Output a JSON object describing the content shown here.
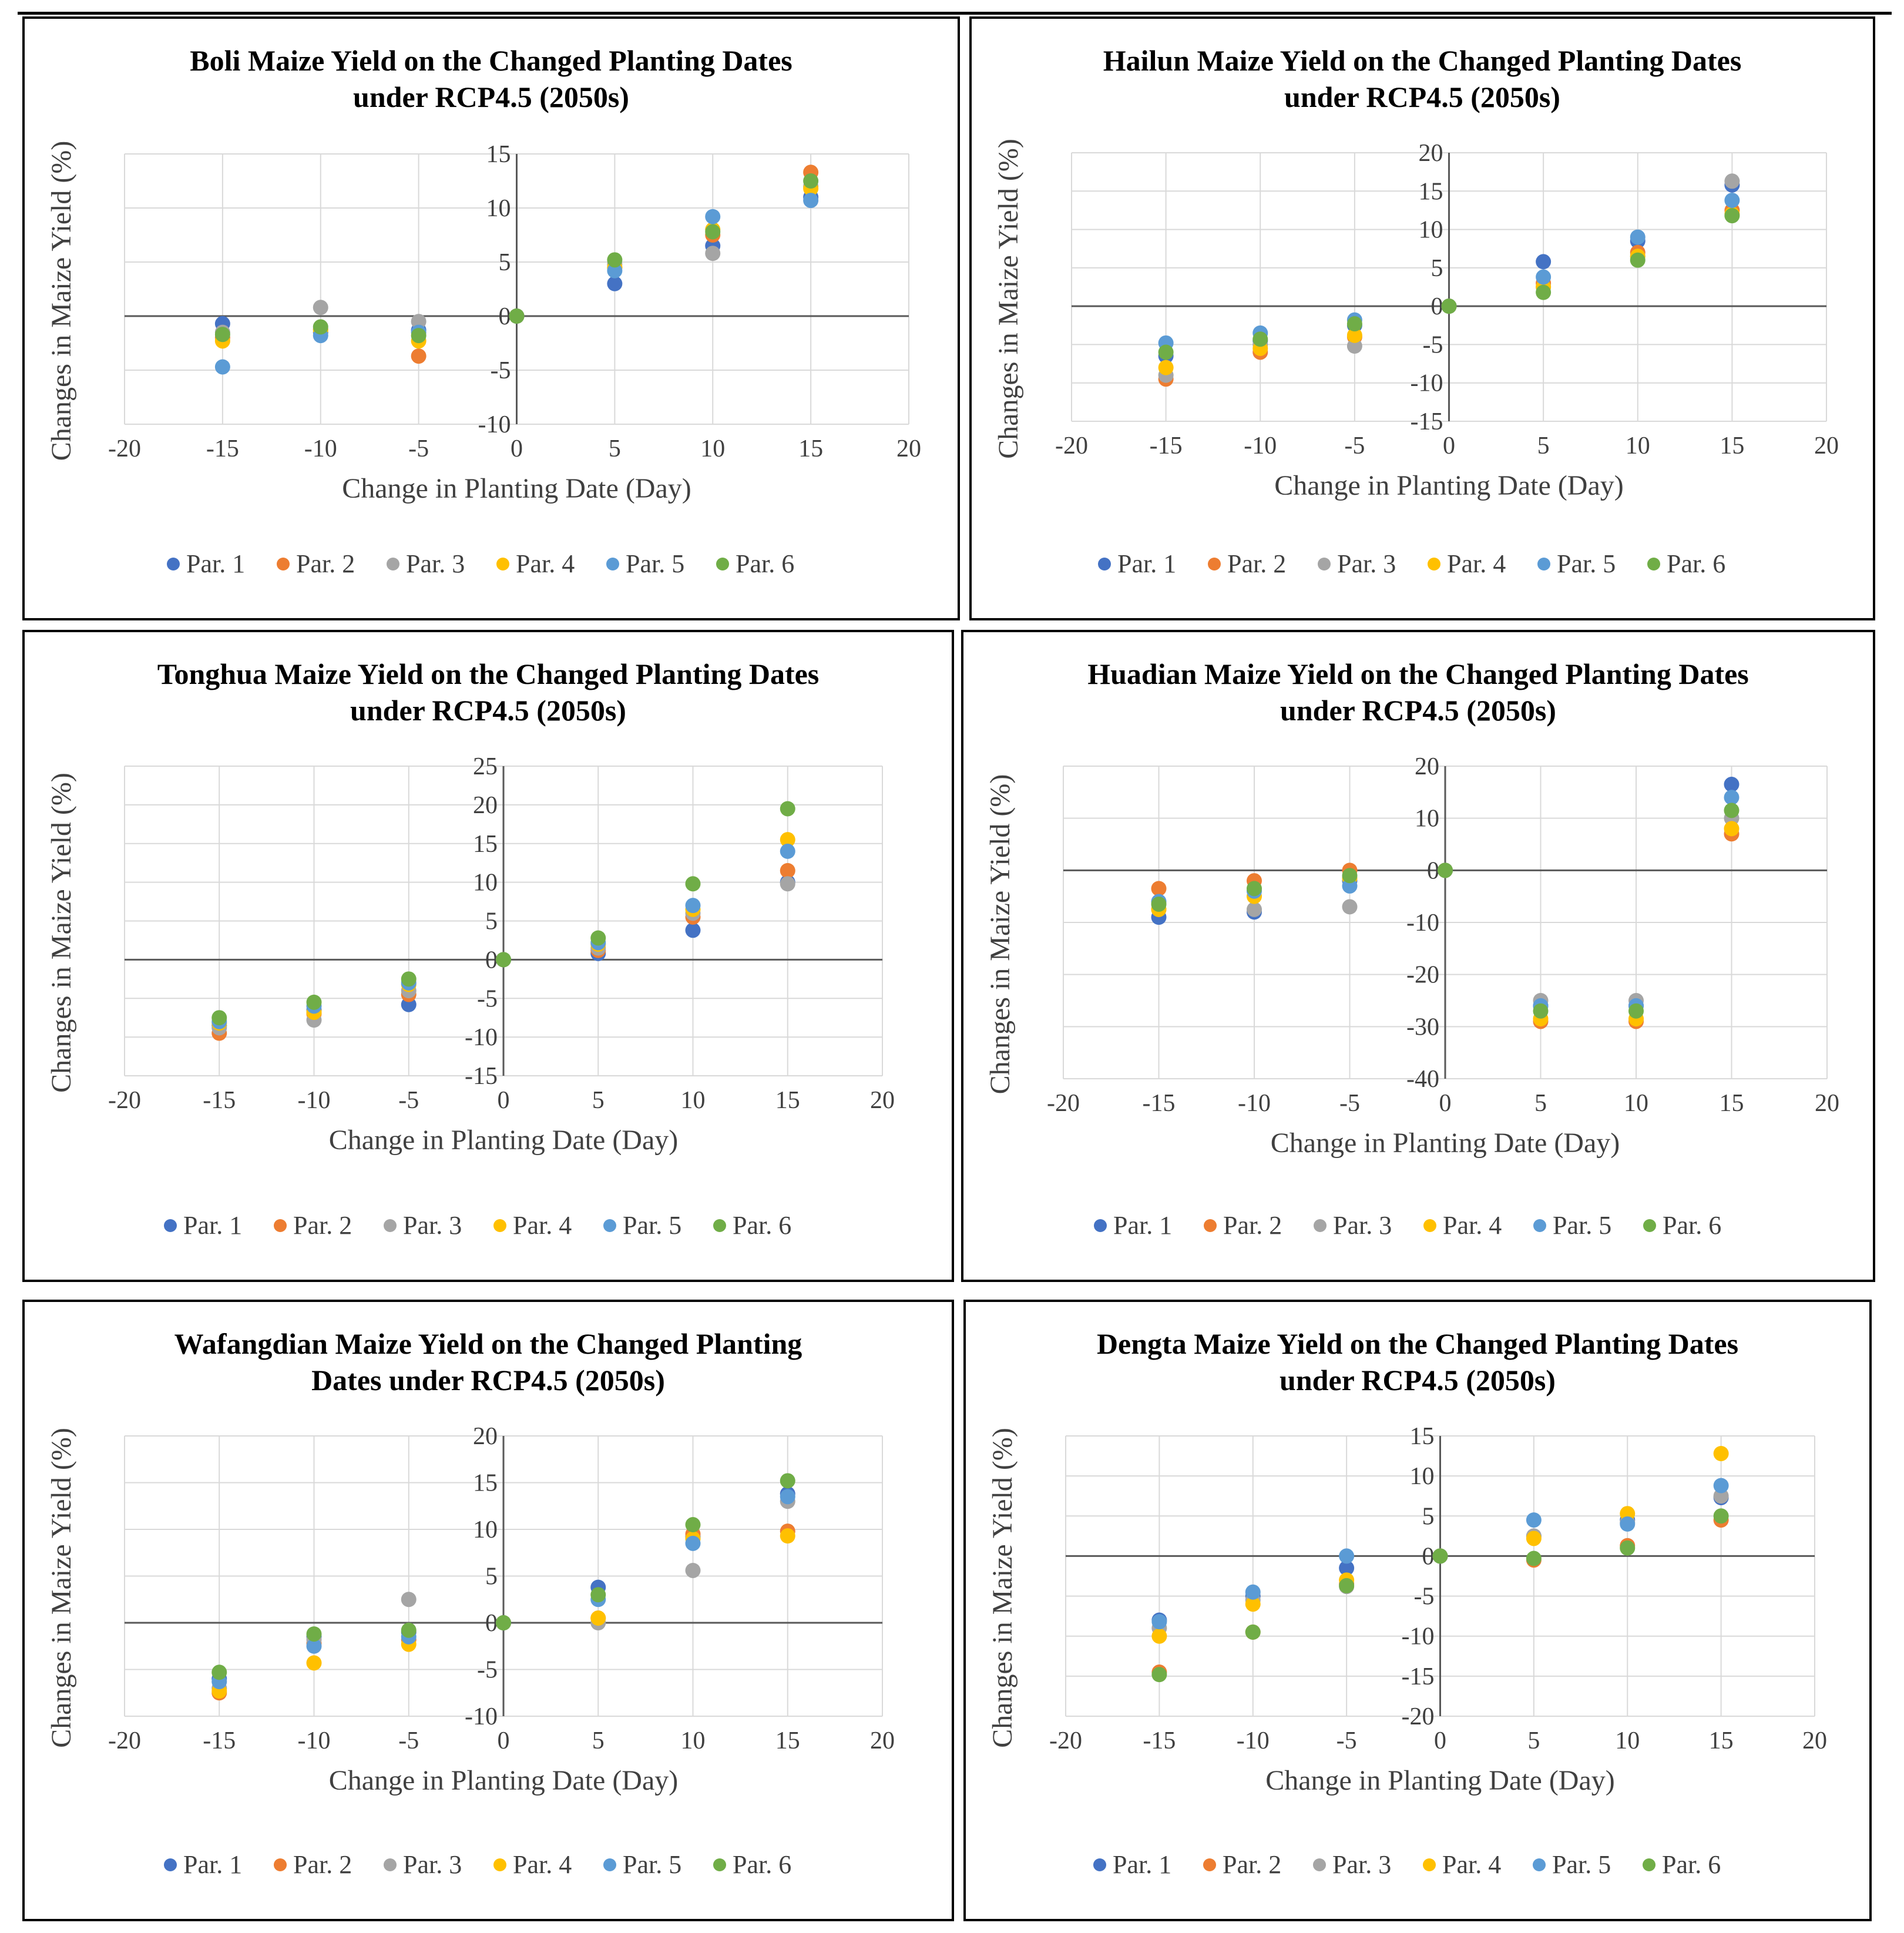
{
  "colors": {
    "par1": "#4472C4",
    "par2": "#ED7D31",
    "par3": "#A5A5A5",
    "par4": "#FFC000",
    "par5": "#5B9BD5",
    "par6": "#70AD47",
    "grid": "#d9d9d9",
    "axis": "#595959"
  },
  "chart_data": [
    {
      "type": "scatter",
      "title_lines": [
        "Boli Maize Yield on the Changed Planting Dates",
        "under RCP4.5 (2050s)"
      ],
      "xlabel": "Change in Planting Date (Day)",
      "ylabel": "Changes in Maize Yield (%)",
      "xlim": [
        -20,
        20
      ],
      "xticks": [
        -20,
        -15,
        -10,
        -5,
        0,
        5,
        10,
        15,
        20
      ],
      "ylim": [
        -10,
        15
      ],
      "yticks": [
        -10,
        -5,
        0,
        5,
        10,
        15
      ],
      "legend_position": "bottom",
      "x": [
        -15,
        -10,
        -5,
        0,
        5,
        10,
        15
      ],
      "series": [
        {
          "name": "Par. 1",
          "values": [
            -0.7,
            -1.5,
            -1.3,
            0,
            3,
            6.5,
            11
          ]
        },
        {
          "name": "Par. 2",
          "values": [
            -2,
            -1.2,
            -3.7,
            0,
            4.5,
            7.5,
            13.3
          ]
        },
        {
          "name": "Par. 3",
          "values": [
            -1.5,
            0.8,
            -0.5,
            0,
            4.8,
            5.8,
            12
          ]
        },
        {
          "name": "Par. 4",
          "values": [
            -2.3,
            -1.3,
            -2.3,
            0,
            4.5,
            8,
            11.8
          ]
        },
        {
          "name": "Par. 5",
          "values": [
            -4.7,
            -1.8,
            -1.5,
            0,
            4.2,
            9.2,
            10.7
          ]
        },
        {
          "name": "Par. 6",
          "values": [
            -1.7,
            -1,
            -1.8,
            0,
            5.2,
            7.8,
            12.5
          ]
        }
      ]
    },
    {
      "type": "scatter",
      "title_lines": [
        "Hailun Maize Yield on the Changed Planting Dates",
        "under RCP4.5 (2050s)"
      ],
      "xlabel": "Change in Planting Date (Day)",
      "ylabel": "Changes in Maize Yield (%)",
      "xlim": [
        -20,
        20
      ],
      "xticks": [
        -20,
        -15,
        -10,
        -5,
        0,
        5,
        10,
        15,
        20
      ],
      "ylim": [
        -15,
        20
      ],
      "yticks": [
        -15,
        -10,
        -5,
        0,
        5,
        10,
        15,
        20
      ],
      "legend_position": "bottom",
      "x": [
        -15,
        -10,
        -5,
        0,
        5,
        10,
        15
      ],
      "series": [
        {
          "name": "Par. 1",
          "values": [
            -6.5,
            -4.5,
            -2.5,
            0,
            5.8,
            8.5,
            15.8
          ]
        },
        {
          "name": "Par. 2",
          "values": [
            -9.5,
            -6,
            -4,
            0,
            3,
            7,
            12.5
          ]
        },
        {
          "name": "Par. 3",
          "values": [
            -9,
            -5,
            -5.2,
            0,
            2.5,
            6.5,
            16.3
          ]
        },
        {
          "name": "Par. 4",
          "values": [
            -8,
            -5.5,
            -3.8,
            0,
            2.5,
            6.5,
            12
          ]
        },
        {
          "name": "Par. 5",
          "values": [
            -4.8,
            -3.5,
            -1.8,
            0,
            3.8,
            9,
            13.8
          ]
        },
        {
          "name": "Par. 6",
          "values": [
            -6,
            -4.3,
            -2.3,
            0,
            1.8,
            6,
            11.8
          ]
        }
      ]
    },
    {
      "type": "scatter",
      "title_lines": [
        "Tonghua Maize Yield on the Changed Planting Dates",
        "under RCP4.5 (2050s)"
      ],
      "xlabel": "Change in Planting Date (Day)",
      "ylabel": "Changes in Maize Yield (%)",
      "xlim": [
        -20,
        20
      ],
      "xticks": [
        -20,
        -15,
        -10,
        -5,
        0,
        5,
        10,
        15,
        20
      ],
      "ylim": [
        -15,
        25
      ],
      "yticks": [
        -15,
        -10,
        -5,
        0,
        5,
        10,
        15,
        20,
        25
      ],
      "legend_position": "bottom",
      "x": [
        -15,
        -10,
        -5,
        0,
        5,
        10,
        15
      ],
      "series": [
        {
          "name": "Par. 1",
          "values": [
            -8.5,
            -6.5,
            -5.8,
            0,
            0.8,
            3.8,
            10
          ]
        },
        {
          "name": "Par. 2",
          "values": [
            -9.5,
            -7,
            -4.5,
            0,
            1.2,
            5.5,
            11.5
          ]
        },
        {
          "name": "Par. 3",
          "values": [
            -8.8,
            -7.8,
            -4,
            0,
            1.5,
            6,
            9.8
          ]
        },
        {
          "name": "Par. 4",
          "values": [
            -8.2,
            -6.8,
            -3.2,
            0,
            2,
            6.5,
            15.5
          ]
        },
        {
          "name": "Par. 5",
          "values": [
            -8,
            -6,
            -3,
            0,
            2.2,
            7,
            14
          ]
        },
        {
          "name": "Par. 6",
          "values": [
            -7.5,
            -5.5,
            -2.5,
            0,
            2.8,
            9.8,
            19.5
          ]
        }
      ]
    },
    {
      "type": "scatter",
      "title_lines": [
        "Huadian Maize Yield on the Changed Planting Dates",
        "under RCP4.5 (2050s)"
      ],
      "xlabel": "Change in Planting Date (Day)",
      "ylabel": "Changes in Maize Yield (%)",
      "xlim": [
        -20,
        20
      ],
      "xticks": [
        -20,
        -15,
        -10,
        -5,
        0,
        5,
        10,
        15,
        20
      ],
      "ylim": [
        -40,
        20
      ],
      "yticks": [
        -40,
        -30,
        -20,
        -10,
        0,
        10,
        20
      ],
      "legend_position": "bottom",
      "x": [
        -15,
        -10,
        -5,
        0,
        5,
        10,
        15
      ],
      "series": [
        {
          "name": "Par. 1",
          "values": [
            -9,
            -8,
            -2,
            0,
            -26,
            -26,
            16.5
          ]
        },
        {
          "name": "Par. 2",
          "values": [
            -3.5,
            -2,
            0,
            0,
            -29,
            -29,
            7
          ]
        },
        {
          "name": "Par. 3",
          "values": [
            -7.5,
            -7.5,
            -7,
            0,
            -25,
            -25,
            10
          ]
        },
        {
          "name": "Par. 4",
          "values": [
            -7.5,
            -5,
            -1.5,
            0,
            -28.5,
            -28.5,
            8
          ]
        },
        {
          "name": "Par. 5",
          "values": [
            -6,
            -4,
            -3,
            0,
            -26,
            -26,
            14
          ]
        },
        {
          "name": "Par. 6",
          "values": [
            -6.5,
            -3.5,
            -1,
            0,
            -27,
            -27,
            11.5
          ]
        }
      ]
    },
    {
      "type": "scatter",
      "title_lines": [
        "Wafangdian Maize Yield on the Changed Planting",
        "Dates under RCP4.5 (2050s)"
      ],
      "xlabel": "Change in Planting Date (Day)",
      "ylabel": "Changes in Maize Yield (%)",
      "xlim": [
        -20,
        20
      ],
      "xticks": [
        -20,
        -15,
        -10,
        -5,
        0,
        5,
        10,
        15,
        20
      ],
      "ylim": [
        -10,
        20
      ],
      "yticks": [
        -10,
        -5,
        0,
        5,
        10,
        15,
        20
      ],
      "legend_position": "bottom",
      "x": [
        -15,
        -10,
        -5,
        0,
        5,
        10,
        15
      ],
      "series": [
        {
          "name": "Par. 1",
          "values": [
            -6,
            -1.5,
            -1,
            0,
            3.8,
            9.2,
            13.8
          ]
        },
        {
          "name": "Par. 2",
          "values": [
            -7.5,
            -2.2,
            -1.8,
            0,
            0.5,
            9.5,
            9.8
          ]
        },
        {
          "name": "Par. 3",
          "values": [
            -7,
            -1.8,
            2.5,
            0,
            0,
            5.6,
            13
          ]
        },
        {
          "name": "Par. 4",
          "values": [
            -7.3,
            -4.3,
            -2.3,
            0,
            0.5,
            9,
            9.3
          ]
        },
        {
          "name": "Par. 5",
          "values": [
            -6.3,
            -2.5,
            -1.5,
            0,
            2.5,
            8.5,
            13.5
          ]
        },
        {
          "name": "Par. 6",
          "values": [
            -5.3,
            -1.2,
            -0.8,
            0,
            3,
            10.5,
            15.2
          ]
        }
      ]
    },
    {
      "type": "scatter",
      "title_lines": [
        "Dengta Maize Yield on the Changed Planting Dates",
        "under RCP4.5 (2050s)"
      ],
      "xlabel": "Change in Planting Date (Day)",
      "ylabel": "Changes in Maize Yield (%)",
      "xlim": [
        -20,
        20
      ],
      "xticks": [
        -20,
        -15,
        -10,
        -5,
        0,
        5,
        10,
        15,
        20
      ],
      "ylim": [
        -20,
        15
      ],
      "yticks": [
        -20,
        -15,
        -10,
        -5,
        0,
        5,
        10,
        15
      ],
      "legend_position": "bottom",
      "x": [
        -15,
        -10,
        -5,
        0,
        5,
        10,
        15
      ],
      "series": [
        {
          "name": "Par. 1",
          "values": [
            -8,
            -5,
            -1.5,
            0,
            2.5,
            4.5,
            7.3
          ]
        },
        {
          "name": "Par. 2",
          "values": [
            -14.5,
            -9.5,
            -3.5,
            0,
            -0.5,
            1.3,
            4.5
          ]
        },
        {
          "name": "Par. 3",
          "values": [
            -9,
            -5.5,
            -3.8,
            0,
            2.5,
            4.2,
            7.5
          ]
        },
        {
          "name": "Par. 4",
          "values": [
            -10,
            -6,
            -3,
            0,
            2.2,
            5.3,
            12.8
          ]
        },
        {
          "name": "Par. 5",
          "values": [
            -8.2,
            -4.5,
            0,
            0,
            4.5,
            4,
            8.8
          ]
        },
        {
          "name": "Par. 6",
          "values": [
            -14.8,
            -9.5,
            -3.7,
            0,
            -0.3,
            1,
            5
          ]
        }
      ]
    }
  ]
}
